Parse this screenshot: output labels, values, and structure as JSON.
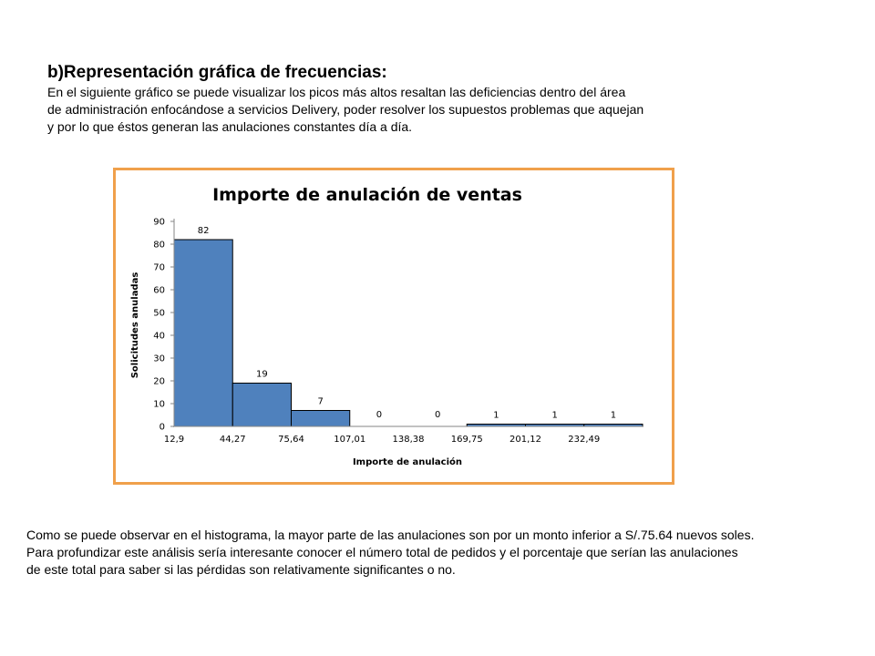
{
  "intro": {
    "heading": "b)Representación gráfica de frecuencias:",
    "lines": [
      "En el siguiente gráfico se puede visualizar los picos más altos resaltan las deficiencias dentro del área",
      "de administración enfocándose a servicios Delivery,  poder resolver los supuestos problemas que  aquejan",
      "y por lo que éstos generan las anulaciones constantes día a día."
    ]
  },
  "chart_data": {
    "type": "bar",
    "title": "Importe de anulación de ventas",
    "xlabel": "Importe de anulación",
    "ylabel": "Solicitudes anuladas",
    "ylim": [
      0,
      90
    ],
    "yticks": [
      "0",
      "10",
      "20",
      "30",
      "40",
      "50",
      "60",
      "70",
      "80",
      "90"
    ],
    "xticks": [
      "12,9",
      "44,27",
      "75,64",
      "107,01",
      "138,38",
      "169,75",
      "201,12",
      "232,49"
    ],
    "values": [
      82,
      19,
      7,
      0,
      0,
      1,
      1,
      1
    ],
    "data_labels": [
      "82",
      "19",
      "7",
      "0",
      "0",
      "1",
      "1",
      "1"
    ],
    "bar_color": "#4f81bd",
    "grid": false,
    "legend": "none"
  },
  "conclusion": {
    "lines": [
      "Como se puede observar en el histograma, la mayor parte de las anulaciones son por un monto inferior a S/.75.64 nuevos soles.",
      "Para profundizar este análisis sería interesante conocer el número total de pedidos y el porcentaje que serían las anulaciones",
      "de este total para saber si las pérdidas son relativamente significantes o no."
    ]
  },
  "frame_color": "#f0a04b"
}
